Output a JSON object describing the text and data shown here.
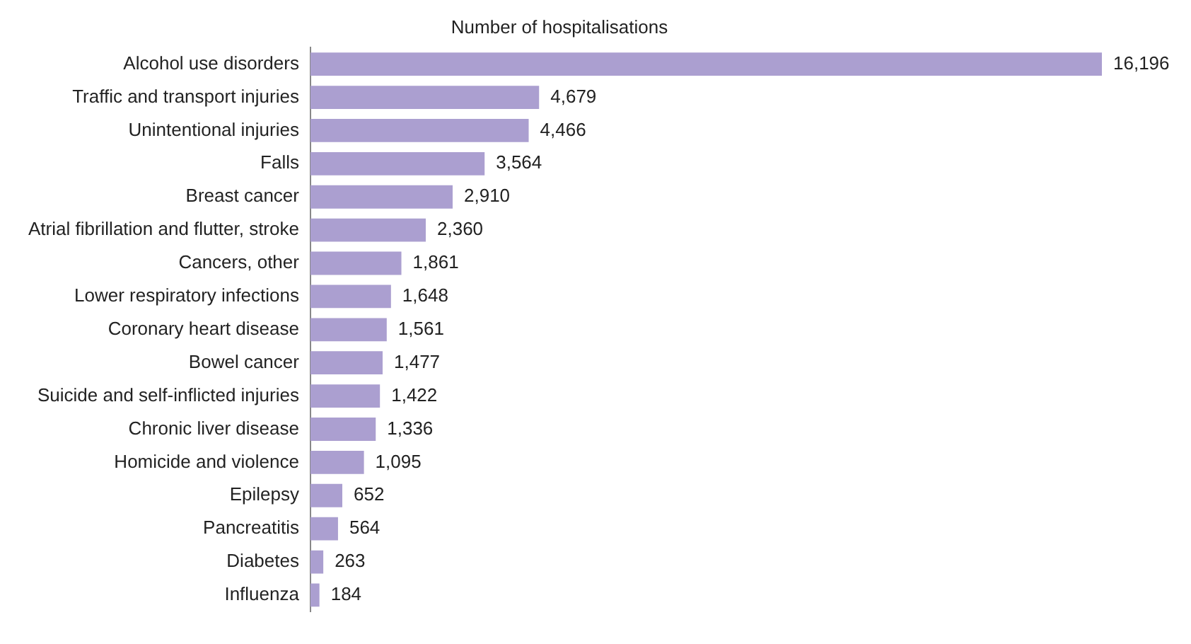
{
  "chart_data": {
    "type": "bar",
    "orientation": "horizontal",
    "title": "Number of hospitalisations",
    "categories": [
      "Alcohol use disorders",
      "Traffic and transport injuries",
      "Unintentional injuries",
      "Falls",
      "Breast cancer",
      "Atrial fibrillation and flutter, stroke",
      "Cancers, other",
      "Lower respiratory infections",
      "Coronary heart disease",
      "Bowel cancer",
      "Suicide and self-inflicted injuries",
      "Chronic liver disease",
      "Homicide and violence",
      "Epilepsy",
      "Pancreatitis",
      "Diabetes",
      "Influenza"
    ],
    "values": [
      16196,
      4679,
      4466,
      3564,
      2910,
      2360,
      1861,
      1648,
      1561,
      1477,
      1422,
      1336,
      1095,
      652,
      564,
      263,
      184
    ],
    "value_labels": [
      "16,196",
      "4,679",
      "4,466",
      "3,564",
      "2,910",
      "2,360",
      "1,861",
      "1,648",
      "1,561",
      "1,477",
      "1,422",
      "1,336",
      "1,095",
      "652",
      "564",
      "263",
      "184"
    ],
    "color": "#ab9fd0",
    "grid": false,
    "legend": false
  }
}
